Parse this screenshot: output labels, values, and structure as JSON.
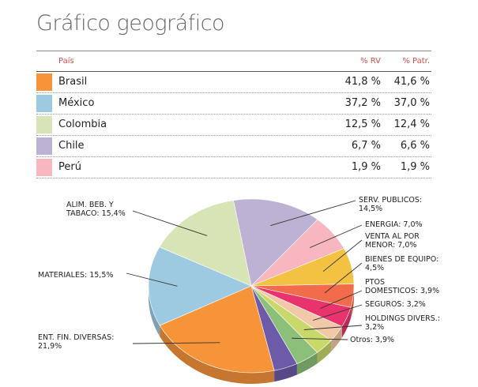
{
  "title": "Gráfico geográfico",
  "table": {
    "headers": {
      "country": "País",
      "rv": "% RV",
      "patr": "% Patr."
    },
    "rows": [
      {
        "name": "Brasil",
        "rv": "41,8 %",
        "patr": "41,6 %",
        "color": "#f7943a"
      },
      {
        "name": "México",
        "rv": "37,2 %",
        "patr": "37,0 %",
        "color": "#9ecae1"
      },
      {
        "name": "Colombia",
        "rv": "12,5 %",
        "patr": "12,4 %",
        "color": "#d7e4b5"
      },
      {
        "name": "Chile",
        "rv": "6,7 %",
        "patr": "6,6 %",
        "color": "#bdb2d3"
      },
      {
        "name": "Perú",
        "rv": "1,9 %",
        "patr": "1,9 %",
        "color": "#f7b6c0"
      }
    ]
  },
  "chart_data": {
    "type": "pie",
    "slices": [
      {
        "value": 14.5,
        "color": "#bdb2d3",
        "label": [
          "SERV. PUBLICOS:",
          "14,5%"
        ]
      },
      {
        "value": 7.0,
        "color": "#f7b6c0",
        "label": [
          "ENERGIA: 7,0%"
        ]
      },
      {
        "value": 7.0,
        "color": "#f4c242",
        "label": [
          "VENTA AL POR",
          "MENOR: 7,0%"
        ]
      },
      {
        "value": 4.5,
        "color": "#f26b4b",
        "label": [
          "BIENES DE EQUIPO:",
          "4,5%"
        ]
      },
      {
        "value": 3.9,
        "color": "#e8336d",
        "label": [
          "PTOS",
          "DOMESTICOS: 3,9%"
        ]
      },
      {
        "value": 3.2,
        "color": "#f2c9a8",
        "label": [
          "SEGUROS: 3,2%"
        ]
      },
      {
        "value": 3.2,
        "color": "#c9d86b",
        "label": [
          "HOLDINGS DIVERS.:",
          "3,2%"
        ]
      },
      {
        "value": 3.9,
        "color": "#8cc07a",
        "label": [
          "Otros: 3,9%"
        ]
      },
      {
        "value": 3.9,
        "color": "#6d5aa8",
        "label": []
      },
      {
        "value": 21.9,
        "color": "#f7943a",
        "label": [
          "ENT. FIN. DIVERSAS:",
          "21,9%"
        ]
      },
      {
        "value": 15.5,
        "color": "#9ecae1",
        "label": [
          "MATERIALES: 15,5%"
        ]
      },
      {
        "value": 15.4,
        "color": "#d7e4b5",
        "label": [
          "ALIM. BEB. Y",
          "TABACO: 15,4%"
        ]
      }
    ]
  }
}
